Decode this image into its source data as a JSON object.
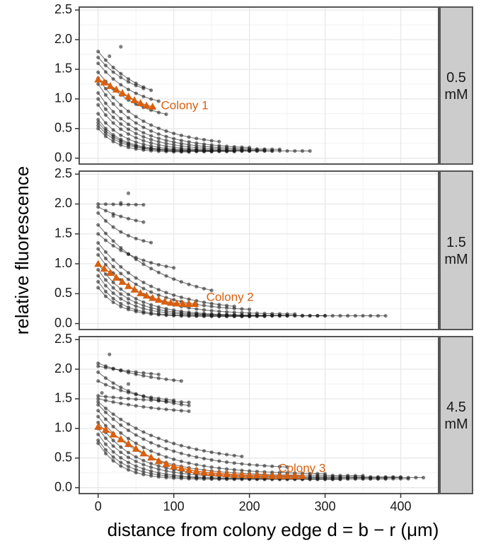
{
  "chart_data": {
    "type": "line",
    "ylabel": "relative fluorescence",
    "xlabel": "distance from colony edge d = b − r (μm)",
    "xlim": [
      -25,
      450
    ],
    "ylim": [
      -0.1,
      2.55
    ],
    "x_ticks": [
      0,
      100,
      200,
      300,
      400
    ],
    "y_ticks": [
      0.0,
      0.5,
      1.0,
      1.5,
      2.0,
      2.5
    ],
    "grid": true,
    "colors": {
      "background_series": "#1a1a1a",
      "highlight": "#d95f0e",
      "strip": "#cccccc",
      "panel_border": "#555555",
      "grid": "#e6e6e6"
    },
    "facets": [
      {
        "strip_label": "0.5\nmM",
        "highlight": {
          "name": "Colony 1",
          "label": "Colony 1",
          "label_at": [
            83,
            0.88
          ],
          "points": [
            [
              0,
              1.33
            ],
            [
              8,
              1.28
            ],
            [
              16,
              1.22
            ],
            [
              24,
              1.16
            ],
            [
              32,
              1.1
            ],
            [
              40,
              1.04
            ],
            [
              48,
              0.98
            ],
            [
              56,
              0.93
            ],
            [
              64,
              0.89
            ],
            [
              72,
              0.87
            ]
          ]
        },
        "profiles": [
          {
            "start": 1.8,
            "end": 0.85,
            "tau": 60,
            "xmax": 70,
            "step": 10
          },
          {
            "start": 1.7,
            "end": 0.95,
            "tau": 50,
            "xmax": 65,
            "step": 10
          },
          {
            "start": 1.6,
            "end": 0.8,
            "tau": 50,
            "xmax": 80,
            "step": 10
          },
          {
            "start": 1.45,
            "end": 0.6,
            "tau": 50,
            "xmax": 90,
            "step": 10
          },
          {
            "start": 1.35,
            "end": 0.2,
            "tau": 60,
            "xmax": 160,
            "step": 10
          },
          {
            "start": 1.25,
            "end": 0.15,
            "tau": 55,
            "xmax": 200,
            "step": 10
          },
          {
            "start": 1.1,
            "end": 0.14,
            "tau": 50,
            "xmax": 240,
            "step": 10
          },
          {
            "start": 1.0,
            "end": 0.13,
            "tau": 45,
            "xmax": 220,
            "step": 10
          },
          {
            "start": 0.9,
            "end": 0.12,
            "tau": 40,
            "xmax": 280,
            "step": 10
          },
          {
            "start": 0.75,
            "end": 0.12,
            "tau": 35,
            "xmax": 230,
            "step": 10
          },
          {
            "start": 0.65,
            "end": 0.12,
            "tau": 30,
            "xmax": 200,
            "step": 10
          },
          {
            "start": 0.6,
            "end": 0.11,
            "tau": 30,
            "xmax": 180,
            "step": 10
          },
          {
            "start": 0.55,
            "end": 0.11,
            "tau": 28,
            "xmax": 150,
            "step": 10
          },
          {
            "start": 0.5,
            "end": 0.1,
            "tau": 25,
            "xmax": 120,
            "step": 10
          }
        ],
        "extra_points": [
          [
            30,
            1.88
          ],
          [
            15,
            1.72
          ]
        ]
      },
      {
        "strip_label": "1.5\nmM",
        "highlight": {
          "name": "Colony 2",
          "label": "Colony 2",
          "label_at": [
            143,
            0.43
          ],
          "points": [
            [
              0,
              1.0
            ],
            [
              8,
              0.92
            ],
            [
              16,
              0.85
            ],
            [
              24,
              0.77
            ],
            [
              32,
              0.7
            ],
            [
              40,
              0.63
            ],
            [
              48,
              0.57
            ],
            [
              56,
              0.51
            ],
            [
              64,
              0.47
            ],
            [
              72,
              0.43
            ],
            [
              80,
              0.4
            ],
            [
              88,
              0.37
            ],
            [
              96,
              0.35
            ],
            [
              104,
              0.34
            ],
            [
              112,
              0.33
            ],
            [
              120,
              0.33
            ],
            [
              128,
              0.33
            ]
          ]
        },
        "profiles": [
          {
            "start": 2.0,
            "end": 1.95,
            "tau": 200,
            "xmax": 60,
            "step": 10
          },
          {
            "start": 1.95,
            "end": 1.55,
            "tau": 60,
            "xmax": 60,
            "step": 10
          },
          {
            "start": 1.85,
            "end": 1.25,
            "tau": 40,
            "xmax": 70,
            "step": 10
          },
          {
            "start": 1.65,
            "end": 0.3,
            "tau": 90,
            "xmax": 150,
            "step": 10
          },
          {
            "start": 1.5,
            "end": 0.8,
            "tau": 60,
            "xmax": 100,
            "step": 10
          },
          {
            "start": 1.35,
            "end": 0.2,
            "tau": 70,
            "xmax": 180,
            "step": 10
          },
          {
            "start": 1.25,
            "end": 0.2,
            "tau": 60,
            "xmax": 200,
            "step": 10
          },
          {
            "start": 1.15,
            "end": 0.15,
            "tau": 55,
            "xmax": 260,
            "step": 10
          },
          {
            "start": 1.0,
            "end": 0.13,
            "tau": 45,
            "xmax": 380,
            "step": 10
          },
          {
            "start": 0.9,
            "end": 0.13,
            "tau": 40,
            "xmax": 300,
            "step": 10
          },
          {
            "start": 0.8,
            "end": 0.13,
            "tau": 35,
            "xmax": 250,
            "step": 10
          },
          {
            "start": 0.7,
            "end": 0.12,
            "tau": 30,
            "xmax": 220,
            "step": 10
          },
          {
            "start": 0.6,
            "end": 0.12,
            "tau": 28,
            "xmax": 200,
            "step": 10
          }
        ],
        "extra_points": [
          [
            40,
            2.18
          ],
          [
            30,
            2.02
          ],
          [
            20,
            1.8
          ]
        ]
      },
      {
        "strip_label": "4.5\nmM",
        "highlight": {
          "name": "Colony 3",
          "label": "Colony 3",
          "label_at": [
            238,
            0.32
          ],
          "points": [
            [
              0,
              1.03
            ],
            [
              10,
              0.98
            ],
            [
              20,
              0.9
            ],
            [
              30,
              0.82
            ],
            [
              40,
              0.74
            ],
            [
              50,
              0.66
            ],
            [
              60,
              0.58
            ],
            [
              70,
              0.51
            ],
            [
              80,
              0.45
            ],
            [
              90,
              0.4
            ],
            [
              100,
              0.36
            ],
            [
              110,
              0.33
            ],
            [
              120,
              0.3
            ],
            [
              130,
              0.28
            ],
            [
              140,
              0.26
            ],
            [
              150,
              0.25
            ],
            [
              160,
              0.24
            ],
            [
              170,
              0.23
            ],
            [
              180,
              0.22
            ],
            [
              190,
              0.22
            ],
            [
              200,
              0.21
            ],
            [
              210,
              0.21
            ],
            [
              220,
              0.21
            ],
            [
              230,
              0.2
            ],
            [
              240,
              0.2
            ],
            [
              250,
              0.2
            ],
            [
              260,
              0.2
            ],
            [
              270,
              0.2
            ]
          ]
        },
        "profiles": [
          {
            "start": 2.1,
            "end": 1.7,
            "tau": 80,
            "xmax": 110,
            "step": 10
          },
          {
            "start": 2.05,
            "end": 1.8,
            "tau": 100,
            "xmax": 80,
            "step": 10
          },
          {
            "start": 1.95,
            "end": 1.3,
            "tau": 60,
            "xmax": 120,
            "step": 10
          },
          {
            "start": 1.8,
            "end": 1.4,
            "tau": 60,
            "xmax": 100,
            "step": 10
          },
          {
            "start": 1.55,
            "end": 1.35,
            "tau": 150,
            "xmax": 120,
            "step": 10
          },
          {
            "start": 1.5,
            "end": 1.2,
            "tau": 100,
            "xmax": 125,
            "step": 10
          },
          {
            "start": 1.45,
            "end": 0.4,
            "tau": 90,
            "xmax": 190,
            "step": 10
          },
          {
            "start": 1.4,
            "end": 0.3,
            "tau": 80,
            "xmax": 250,
            "step": 10
          },
          {
            "start": 1.3,
            "end": 0.22,
            "tau": 70,
            "xmax": 300,
            "step": 10
          },
          {
            "start": 1.2,
            "end": 0.2,
            "tau": 60,
            "xmax": 350,
            "step": 10
          },
          {
            "start": 1.1,
            "end": 0.18,
            "tau": 50,
            "xmax": 400,
            "step": 10
          },
          {
            "start": 1.0,
            "end": 0.17,
            "tau": 45,
            "xmax": 430,
            "step": 10
          },
          {
            "start": 0.9,
            "end": 0.15,
            "tau": 40,
            "xmax": 410,
            "step": 10
          },
          {
            "start": 0.8,
            "end": 0.15,
            "tau": 35,
            "xmax": 380,
            "step": 10
          },
          {
            "start": 0.75,
            "end": 0.14,
            "tau": 30,
            "xmax": 320,
            "step": 10
          }
        ],
        "extra_points": [
          [
            15,
            2.25
          ],
          [
            40,
            1.75
          ],
          [
            5,
            1.6
          ]
        ]
      }
    ]
  }
}
